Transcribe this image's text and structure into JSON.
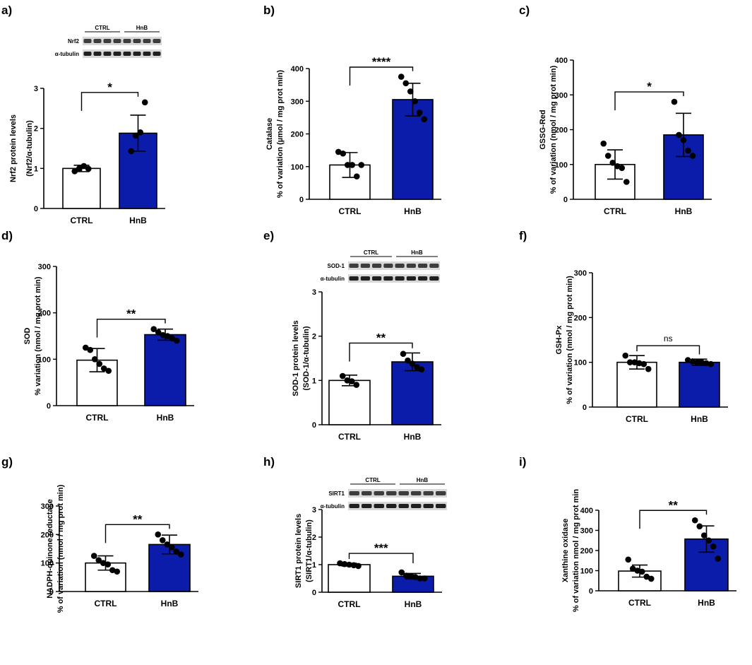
{
  "figure_title": "",
  "chart_data": [
    {
      "panel_label": "a)",
      "type": "bar",
      "categories": [
        "CTRL",
        "HnB"
      ],
      "values": [
        1.0,
        1.88
      ],
      "errors": [
        0.08,
        0.45
      ],
      "points": [
        [
          0.93,
          1.0,
          1.06,
          0.99
        ],
        [
          1.43,
          1.82,
          1.9,
          2.65
        ]
      ],
      "ylabel_lines": [
        "Nrf2 protein levels",
        "(Nrf2/α-tubulin)"
      ],
      "ylim": [
        0,
        3
      ],
      "yticks": [
        "0",
        "1",
        "2",
        "3"
      ],
      "significance": "*",
      "blot": {
        "groups": [
          "CTRL",
          "HnB"
        ],
        "rows": [
          "Nrf2",
          "α-tubulin"
        ]
      }
    },
    {
      "panel_label": "b)",
      "type": "bar",
      "categories": [
        "CTRL",
        "HnB"
      ],
      "values": [
        105,
        305
      ],
      "errors": [
        38,
        50
      ],
      "points": [
        [
          145,
          140,
          105,
          105,
          70,
          105
        ],
        [
          375,
          355,
          330,
          300,
          265,
          245
        ]
      ],
      "ylabel_lines": [
        "Catalase",
        "% of variation (µmol / mg prot min)"
      ],
      "ylim": [
        0,
        400
      ],
      "yticks": [
        "0",
        "100",
        "200",
        "300",
        "400"
      ],
      "significance": "****"
    },
    {
      "panel_label": "c)",
      "type": "bar",
      "categories": [
        "CTRL",
        "HnB"
      ],
      "values": [
        100,
        185
      ],
      "errors": [
        42,
        62
      ],
      "points": [
        [
          160,
          125,
          105,
          95,
          90,
          50
        ],
        [
          280,
          185,
          170,
          140,
          125
        ]
      ],
      "ylabel_lines": [
        "GSSG-Red",
        "% of variation (nmol / mg prot min)"
      ],
      "ylim": [
        0,
        400
      ],
      "yticks": [
        "0",
        "100",
        "200",
        "300",
        "400"
      ],
      "significance": "*"
    },
    {
      "panel_label": "d)",
      "type": "bar",
      "categories": [
        "CTRL",
        "HnB"
      ],
      "values": [
        98,
        153
      ],
      "errors": [
        25,
        12
      ],
      "points": [
        [
          125,
          120,
          100,
          90,
          80,
          75
        ],
        [
          165,
          158,
          152,
          150,
          145,
          140
        ]
      ],
      "ylabel_lines": [
        "SOD",
        "% variation (nmol / mg prot min)"
      ],
      "ylim": [
        0,
        300
      ],
      "yticks": [
        "0",
        "100",
        "200",
        "300"
      ],
      "significance": "**"
    },
    {
      "panel_label": "e)",
      "type": "bar",
      "categories": [
        "CTRL",
        "HnB"
      ],
      "values": [
        1.0,
        1.42
      ],
      "errors": [
        0.12,
        0.2
      ],
      "points": [
        [
          1.1,
          1.0,
          0.98,
          0.9
        ],
        [
          1.6,
          1.45,
          1.38,
          1.3,
          1.25
        ]
      ],
      "ylabel_lines": [
        "SOD-1 protein levels",
        "(SOD-1/α-tubulin)"
      ],
      "ylim": [
        0,
        3
      ],
      "yticks": [
        "0",
        "1",
        "2",
        "3"
      ],
      "significance": "**",
      "blot": {
        "groups": [
          "CTRL",
          "HnB"
        ],
        "rows": [
          "SOD-1",
          "α-tubulin"
        ]
      }
    },
    {
      "panel_label": "f)",
      "type": "bar",
      "categories": [
        "CTRL",
        "HnB"
      ],
      "values": [
        100,
        100
      ],
      "errors": [
        15,
        7
      ],
      "points": [
        [
          115,
          100,
          100,
          98,
          96,
          85
        ],
        [
          105,
          102,
          100,
          100,
          98,
          96
        ]
      ],
      "ylabel_lines": [
        "GSH-Px",
        "% of variation (nmol / mg prot min)"
      ],
      "ylim": [
        0,
        300
      ],
      "yticks": [
        "0",
        "100",
        "200",
        "300"
      ],
      "significance": "ns"
    },
    {
      "panel_label": "g)",
      "type": "bar",
      "categories": [
        "CTRL",
        "HnB"
      ],
      "values": [
        100,
        165
      ],
      "errors": [
        25,
        33
      ],
      "points": [
        [
          125,
          110,
          100,
          95,
          75,
          70
        ],
        [
          200,
          180,
          165,
          155,
          140,
          130
        ]
      ],
      "ylabel_lines": [
        "NADPH-quinone reductase",
        "% of variation (nmol / mg prot min)"
      ],
      "ylim": [
        0,
        300
      ],
      "yticks": [
        "0",
        "100",
        "200",
        "300"
      ],
      "significance": "**"
    },
    {
      "panel_label": "h)",
      "type": "bar",
      "categories": [
        "CTRL",
        "HnB"
      ],
      "values": [
        1.0,
        0.58
      ],
      "errors": [
        0.05,
        0.1
      ],
      "points": [
        [
          1.05,
          1.02,
          1.0,
          0.98,
          0.95
        ],
        [
          0.72,
          0.6,
          0.58,
          0.55,
          0.5,
          0.5
        ]
      ],
      "ylabel_lines": [
        "SIRT1 protein levels",
        "(SIRT1/α-tubulin)"
      ],
      "ylim": [
        0,
        3
      ],
      "yticks": [
        "0",
        "1",
        "2",
        "3"
      ],
      "significance": "***",
      "blot": {
        "groups": [
          "CTRL",
          "HnB"
        ],
        "rows": [
          "SIRT1",
          "α-tubulin"
        ]
      }
    },
    {
      "panel_label": "i)",
      "type": "bar",
      "categories": [
        "CTRL",
        "HnB"
      ],
      "values": [
        98,
        257
      ],
      "errors": [
        30,
        65
      ],
      "points": [
        [
          155,
          110,
          100,
          95,
          70,
          60
        ],
        [
          350,
          320,
          275,
          250,
          220,
          160
        ]
      ],
      "ylabel_lines": [
        "Xanthine oxidase",
        "% of variation nmol / mg prot min"
      ],
      "ylim": [
        0,
        400
      ],
      "yticks": [
        "0",
        "100",
        "200",
        "300",
        "400"
      ],
      "significance": "**"
    }
  ],
  "colors": {
    "ctrl_fill": "#ffffff",
    "hnb_fill": "#0b1caa",
    "ink": "#000000",
    "blot_bg": "#d8d8d8"
  }
}
